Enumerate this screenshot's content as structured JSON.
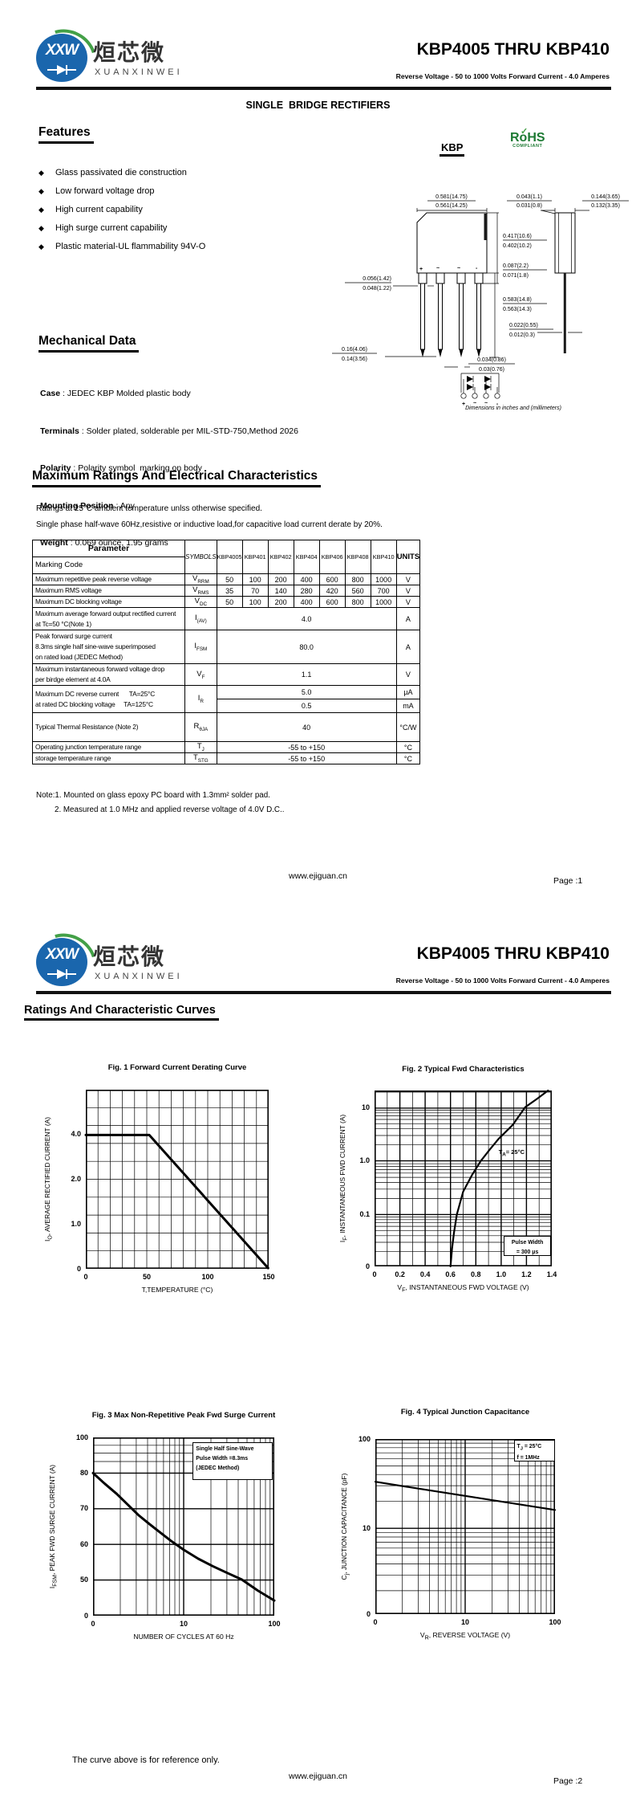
{
  "brand": {
    "logo_text": "XXW",
    "logo_cn": "烜芯微",
    "logo_en": "XUANXINWEI"
  },
  "header": {
    "title": "KBP4005 THRU KBP410",
    "subtitle": "Reverse Voltage - 50 to 1000 Volts Forward Current - 4.0 Amperes"
  },
  "page1": {
    "product_line": "SINGLE  BRIDGE RECTIFIERS",
    "features": {
      "heading": "Features",
      "items": [
        "Glass passivated die construction",
        "Low forward voltage drop",
        "High current capability",
        "High surge current capability",
        "Plastic material-UL flammability 94V-O"
      ]
    },
    "package": {
      "label": "KBP",
      "rohs_line1": "RoHS",
      "rohs_line2": "COMPLIANT",
      "pins": [
        "+",
        "~",
        "~",
        "-"
      ],
      "dims": {
        "d1": [
          "0.581(14.75)",
          "0.561(14.25)"
        ],
        "d2": [
          "0.043(1.1)",
          "0.031(0.8)"
        ],
        "d3": [
          "0.144(3.65)",
          "0.132(3.35)"
        ],
        "d4": [
          "0.417(10.6)",
          "0.402(10.2)"
        ],
        "d5": [
          "0.087(2.2)",
          "0.071(1.8)"
        ],
        "d6": [
          "0.056(1.42)",
          "0.048(1.22)"
        ],
        "d7": [
          "0.583(14.8)",
          "0.563(14.3)"
        ],
        "d8": [
          "0.022(0.55)",
          "0.012(0.3)"
        ],
        "d9": [
          "0.16(4.06)",
          "0.14(3.56)"
        ],
        "d10": [
          "0.034(0.86)",
          "0.03(0.76)"
        ]
      },
      "caption": "Dimensions in inches and (millimeters)"
    },
    "mechanical": {
      "heading": "Mechanical Data",
      "rows": [
        {
          "label": "Case",
          "value": " : JEDEC KBP Molded plastic body"
        },
        {
          "label": "Terminals",
          "value": " : Solder plated, solderable per MIL-STD-750,Method 2026"
        },
        {
          "label": "Polarity",
          "value": " : Polarity symbol  marking on body"
        },
        {
          "label": "Mounting Position",
          "value": " : Any"
        },
        {
          "label": "Weight",
          "value": " : 0.069 ounce, 1.95 grams"
        }
      ]
    },
    "ratings": {
      "heading": "Maximum Ratings And Electrical Characteristics",
      "note1": "Ratings at 25°C ambient temperature unlss otherwise specified.",
      "note2": "Single phase half-wave 60Hz,resistive or inductive load,for capacitive load current derate by 20%.",
      "table": {
        "param_header": "Parameter",
        "marking_header": "Marking Code",
        "symbols_header": "SYMBOLS",
        "units_header": "UNITS",
        "device_columns": [
          "KBP4005",
          "KBP401",
          "KBP402",
          "KBP404",
          "KBP406",
          "KBP408",
          "KBP410"
        ],
        "rows": [
          {
            "param": [
              "Maximum repetitive peak reverse voltage"
            ],
            "sym": "V",
            "sub": "RRM",
            "values": [
              "50",
              "100",
              "200",
              "400",
              "600",
              "800",
              "1000"
            ],
            "units": "V"
          },
          {
            "param": [
              "Maximum RMS voltage"
            ],
            "sym": "V",
            "sub": "RMS",
            "values": [
              "35",
              "70",
              "140",
              "280",
              "420",
              "560",
              "700"
            ],
            "units": "V"
          },
          {
            "param": [
              "Maximum DC blocking voltage"
            ],
            "sym": "V",
            "sub": "DC",
            "values": [
              "50",
              "100",
              "200",
              "400",
              "600",
              "800",
              "1000"
            ],
            "units": "V"
          },
          {
            "param": [
              "Maximum average forward output rectified current",
              "at Tc=50 °C(Note 1)"
            ],
            "sym": "I",
            "sub": "(AV)",
            "span": "4.0",
            "units": "A"
          },
          {
            "param": [
              "Peak forward surge current",
              "8.3ms single half sine-wave superimposed",
              "on rated load (JEDEC Method)"
            ],
            "sym": "I",
            "sub": "FSM",
            "span": "80.0",
            "units": "A"
          },
          {
            "param": [
              "Maximum instantaneous forward voltage drop",
              "per birdge element at 4.0A"
            ],
            "sym": "V",
            "sub": "F",
            "span": "1.1",
            "units": "V"
          },
          {
            "param": [
              "Maximum DC reverse current      TA=25°C",
              "at rated DC blocking voltage     TA=125°C"
            ],
            "sym": "I",
            "sub": "R",
            "split": [
              {
                "span": "5.0",
                "units": "µA"
              },
              {
                "span": "0.5",
                "units": "mA"
              }
            ]
          },
          {
            "param": [
              "Typical Thermal Resistance (Note 2)"
            ],
            "sym": "R",
            "sub": "θJA",
            "span": "40",
            "units": "°C/W"
          },
          {
            "param": [
              "Operating junction temperature range"
            ],
            "sym": "T",
            "sub": "J",
            "span": "-55 to +150",
            "units": "°C"
          },
          {
            "param": [
              "storage temperature range"
            ],
            "sym": "T",
            "sub": "STG",
            "span": "-55 to +150",
            "units": "°C"
          }
        ]
      },
      "footnote1": "Note:1. Mounted on  glass epoxy  PC board with 1.3mm² solder pad.",
      "footnote2": "2. Measured at 1.0 MHz and applied reverse voltage of 4.0V D.C.."
    },
    "footer": {
      "site": "www.ejiguan.cn",
      "page": "Page :1"
    }
  },
  "page2": {
    "heading": "Ratings And Characteristic Curves",
    "reference_note": "The curve above is for reference only.",
    "footer": {
      "site": "www.ejiguan.cn",
      "page": "Page :2"
    }
  },
  "chart_data": [
    {
      "id": "fig1",
      "type": "line",
      "title": "Fig. 1 Forward Current Derating Curve",
      "xlabel": "T,TEMPERATURE (°C)",
      "ylabel": [
        "I",
        "O",
        ", AVERAGE RECTIFIED CURRENT (A)"
      ],
      "xlim": [
        0,
        150
      ],
      "x_ticks": [
        {
          "f": 0,
          "label": "0"
        },
        {
          "f": 0.3333,
          "label": "50"
        },
        {
          "f": 0.6667,
          "label": "100"
        },
        {
          "f": 1,
          "label": "150"
        }
      ],
      "y_ticks": [
        {
          "f": 0,
          "label": "0"
        },
        {
          "f": 0.25,
          "label": "1.0"
        },
        {
          "f": 0.5,
          "label": "2.0"
        },
        {
          "f": 0.75,
          "label": "4.0"
        }
      ],
      "curve": [
        [
          0,
          0.747
        ],
        [
          0.347,
          0.747
        ],
        [
          0.997,
          0.004
        ]
      ],
      "data_points": {
        "x": [
          0,
          50,
          150
        ],
        "y": [
          4.0,
          4.0,
          0.0
        ],
        "note": "flat at 4.0 A up to 50°C, linear derating to 0 A at 150°C"
      },
      "annotations": []
    },
    {
      "id": "fig2",
      "type": "line",
      "title": "Fig. 2  Typical Fwd Characteristics",
      "xlabel": [
        "V",
        "F",
        ", INSTANTANEOUS FWD VOLTAGE (V)"
      ],
      "ylabel": [
        "I",
        "F",
        ", INSTANTANEOUS FWD CURRENT (A)"
      ],
      "xlim": [
        0,
        1.4
      ],
      "yscale": "log",
      "x_ticks": [
        {
          "f": 0,
          "label": "0"
        },
        {
          "f": 0.1429,
          "label": "0.2"
        },
        {
          "f": 0.2857,
          "label": "0.4"
        },
        {
          "f": 0.4286,
          "label": "0.6"
        },
        {
          "f": 0.5714,
          "label": "0.8"
        },
        {
          "f": 0.7143,
          "label": "1.0"
        },
        {
          "f": 0.8571,
          "label": "1.2"
        },
        {
          "f": 1,
          "label": "1.4"
        }
      ],
      "y_ticks": [
        {
          "f": 0,
          "label": "0"
        },
        {
          "f": 0.295,
          "label": "0.1"
        },
        {
          "f": 0.6,
          "label": "1.0"
        },
        {
          "f": 0.9,
          "label": "10"
        }
      ],
      "curve": [
        [
          0.4286,
          0
        ],
        [
          0.437,
          0.1
        ],
        [
          0.448,
          0.19
        ],
        [
          0.4643,
          0.295
        ],
        [
          0.5,
          0.425
        ],
        [
          0.55,
          0.52
        ],
        [
          0.6,
          0.6
        ],
        [
          0.65,
          0.665
        ],
        [
          0.7,
          0.725
        ],
        [
          0.78,
          0.805
        ],
        [
          0.85,
          0.905
        ],
        [
          0.92,
          0.955
        ],
        [
          0.979,
          1.0
        ]
      ],
      "data_points": {
        "vf": [
          0.6,
          0.65,
          0.84,
          1.19,
          1.37
        ],
        "if_a": [
          0.02,
          0.1,
          1.0,
          10,
          20
        ]
      },
      "annotations": [
        {
          "kind": "text",
          "fx": 0.7,
          "fy": 0.67,
          "lines": [
            [
              "T",
              "A",
              "=  25°C"
            ]
          ]
        },
        {
          "kind": "box",
          "fx": 0.73,
          "fy": 0.175,
          "wf": 0.265,
          "hf": 0.115,
          "align": "center",
          "lines": [
            "Pulse Width",
            "= 300 μs"
          ]
        }
      ]
    },
    {
      "id": "fig3",
      "type": "line",
      "title": "Fig. 3  Max Non-Repetitive Peak Fwd Surge Current",
      "xlabel": "NUMBER OF CYCLES AT 60 Hz",
      "ylabel": [
        "I",
        "FSM",
        ",  PEAK FWD SURGE CURRENT (A)"
      ],
      "xscale": "log",
      "xlim": [
        1,
        100
      ],
      "x_ticks": [
        {
          "f": 0,
          "label": "0"
        },
        {
          "f": 0.5,
          "label": "10"
        },
        {
          "f": 1,
          "label": "100"
        }
      ],
      "y_ticks": [
        {
          "f": 0,
          "label": "0"
        },
        {
          "f": 0.2,
          "label": "50"
        },
        {
          "f": 0.4,
          "label": "60"
        },
        {
          "f": 0.6,
          "label": "70"
        },
        {
          "f": 0.8,
          "label": "80"
        },
        {
          "f": 1,
          "label": "100"
        }
      ],
      "curve": [
        [
          0,
          0.8
        ],
        [
          0.065,
          0.74
        ],
        [
          0.13,
          0.684
        ],
        [
          0.19,
          0.625
        ],
        [
          0.25,
          0.565
        ],
        [
          0.31,
          0.515
        ],
        [
          0.36,
          0.475
        ],
        [
          0.43,
          0.42
        ],
        [
          0.5,
          0.37
        ],
        [
          0.58,
          0.32
        ],
        [
          0.66,
          0.278
        ],
        [
          0.74,
          0.24
        ],
        [
          0.82,
          0.203
        ],
        [
          0.91,
          0.14
        ],
        [
          1,
          0.085
        ]
      ],
      "data_points": {
        "cycles": [
          1,
          2,
          4,
          10,
          20,
          50,
          100
        ],
        "ifsm": [
          80,
          73,
          65,
          57,
          52,
          48,
          45
        ]
      },
      "annotations": [
        {
          "kind": "box",
          "fx": 0.55,
          "fy": 0.975,
          "wf": 0.44,
          "hf": 0.215,
          "align": "left",
          "lines": [
            "Single Half Sine-Wave",
            "Pulse Width =8.3ms",
            "(JEDEC Method)"
          ]
        }
      ]
    },
    {
      "id": "fig4",
      "type": "line",
      "title": "Fig. 4  Typical Junction Capacitance",
      "xlabel": [
        "V",
        "R",
        ", REVERSE VOLTAGE (V)"
      ],
      "ylabel": [
        "C",
        "j",
        ", JUNCTION CAPACITANCE (pF)"
      ],
      "xscale": "log",
      "yscale": "log",
      "xlim": [
        1,
        100
      ],
      "x_ticks": [
        {
          "f": 0,
          "label": "0"
        },
        {
          "f": 0.5,
          "label": "10"
        },
        {
          "f": 1,
          "label": "100"
        }
      ],
      "y_ticks": [
        {
          "f": 0,
          "label": "0"
        },
        {
          "f": 0.49,
          "label": "10"
        },
        {
          "f": 1,
          "label": "100"
        }
      ],
      "curve": [
        [
          0,
          0.756
        ],
        [
          0.25,
          0.715
        ],
        [
          0.5,
          0.675
        ],
        [
          0.75,
          0.635
        ],
        [
          1,
          0.595
        ]
      ],
      "data_points": {
        "vr": [
          1,
          10,
          100
        ],
        "cj_pf": [
          33,
          23,
          16
        ]
      },
      "annotations": [
        {
          "kind": "box",
          "fx": 0.77,
          "fy": 0.995,
          "wf": 0.23,
          "hf": 0.125,
          "align": "left",
          "lines": [
            [
              "T",
              "J",
              " = 25°C"
            ],
            "f =  1MHz"
          ]
        }
      ]
    }
  ]
}
